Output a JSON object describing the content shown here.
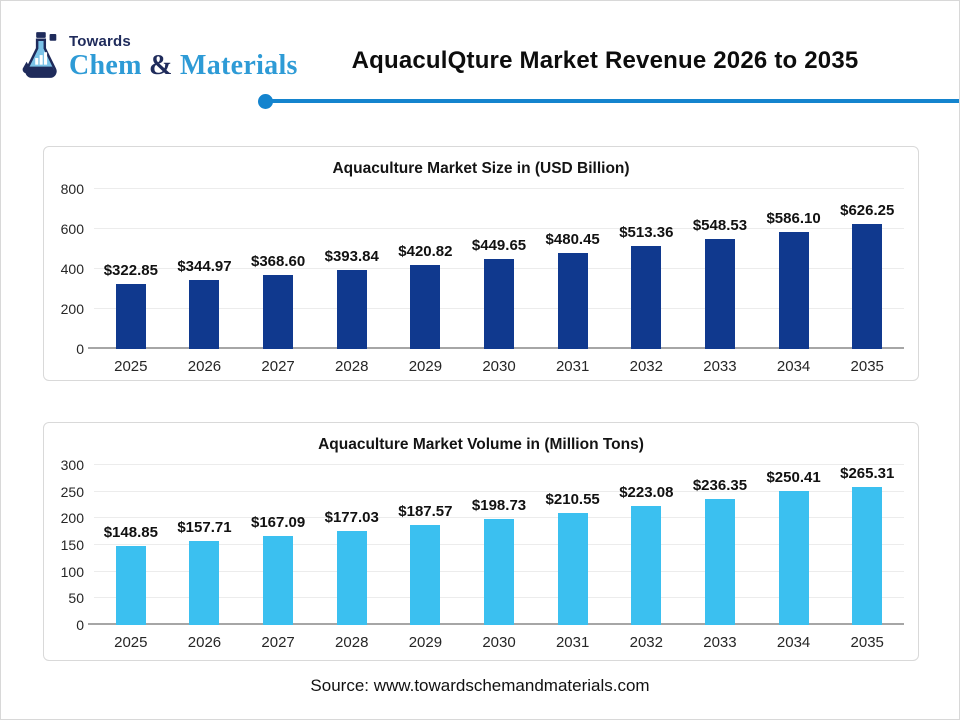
{
  "header": {
    "logo": {
      "line1": "Towards",
      "chem": "Chem",
      "amp": " & ",
      "materials": "Materials",
      "navy": "#1f2b5b",
      "blue": "#2e9bd6"
    },
    "title": "AquaculQture Market Revenue 2026 to 2035",
    "divider_color": "#1484ce"
  },
  "source": "Source: www.towardschemandmaterials.com",
  "chart_data": [
    {
      "type": "bar",
      "title": "Aquaculture Market Size in (USD Billion)",
      "categories": [
        "2025",
        "2026",
        "2027",
        "2028",
        "2029",
        "2030",
        "2031",
        "2032",
        "2033",
        "2034",
        "2035"
      ],
      "values": [
        322.85,
        344.97,
        368.6,
        393.84,
        420.82,
        449.65,
        480.45,
        513.36,
        548.53,
        586.1,
        626.25
      ],
      "labels": [
        "$322.85",
        "$344.97",
        "$368.60",
        "$393.84",
        "$420.82",
        "$449.65",
        "$480.45",
        "$513.36",
        "$548.53",
        "$586.10",
        "$626.25"
      ],
      "xlabel": "",
      "ylabel": "",
      "ylim": [
        0,
        800
      ],
      "yticks": [
        0,
        200,
        400,
        600,
        800
      ],
      "grid": true,
      "legend": "none",
      "bar_color": "#10398e"
    },
    {
      "type": "bar",
      "title": "Aquaculture Market Volume in (Million Tons)",
      "categories": [
        "2025",
        "2026",
        "2027",
        "2028",
        "2029",
        "2030",
        "2031",
        "2032",
        "2033",
        "2034",
        "2035"
      ],
      "values": [
        148.85,
        157.71,
        167.09,
        177.03,
        187.57,
        198.73,
        210.55,
        223.08,
        236.35,
        250.41,
        265.31
      ],
      "labels": [
        "$148.85",
        "$157.71",
        "$167.09",
        "$177.03",
        "$187.57",
        "$198.73",
        "$210.55",
        "$223.08",
        "$236.35",
        "$250.41",
        "$265.31"
      ],
      "xlabel": "",
      "ylabel": "",
      "ylim": [
        0,
        300
      ],
      "yticks": [
        0,
        50,
        100,
        150,
        200,
        250,
        300
      ],
      "grid": true,
      "legend": "none",
      "bar_color": "#3bc0f0"
    }
  ]
}
